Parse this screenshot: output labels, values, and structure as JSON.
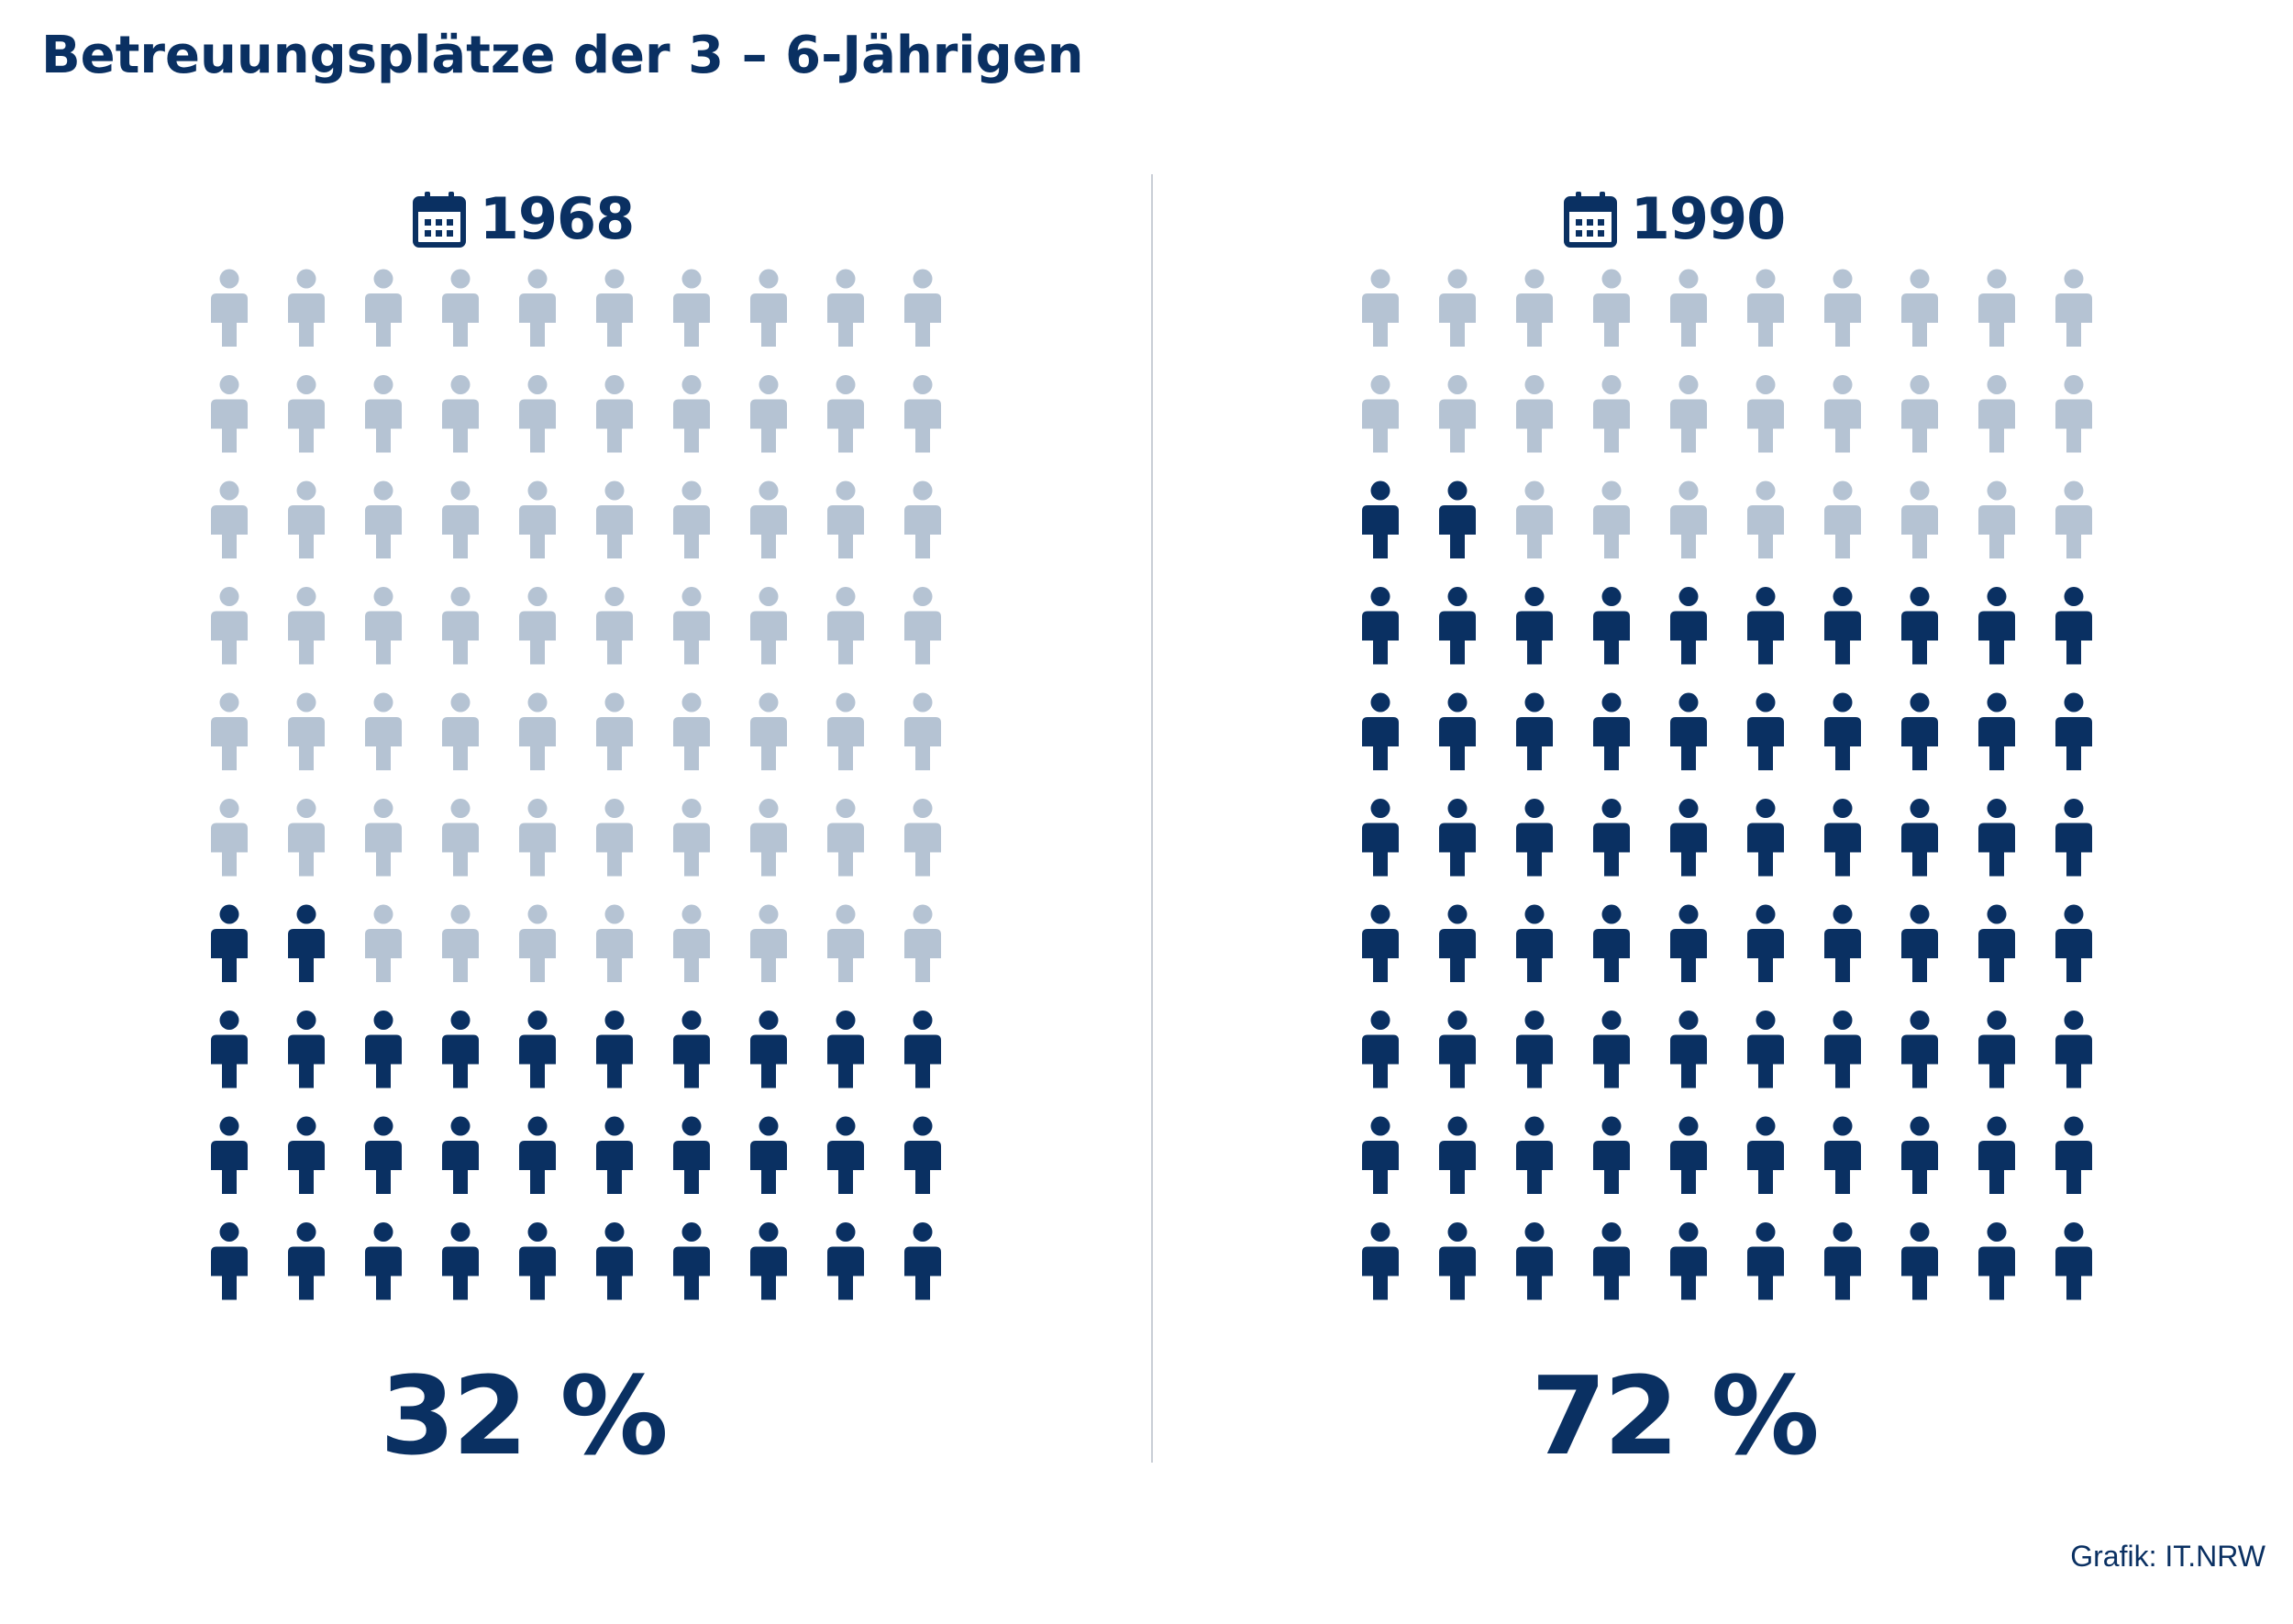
{
  "title": "Betreuungsplätze der 3 – 6-Jährigen",
  "credit": "Grafik: IT.NRW",
  "colors": {
    "filled": "#0a3062",
    "empty": "#b5c3d3",
    "divider": "#c9ced6"
  },
  "icons": {
    "year": "calendar-icon",
    "unit": "person-icon"
  },
  "chart_data": [
    {
      "type": "pictogram",
      "year": "1968",
      "percent_label": "32 %",
      "value": 32,
      "total": 100,
      "columns": 10,
      "rows": 10,
      "fill_order": "bottom-to-top, left-to-right"
    },
    {
      "type": "pictogram",
      "year": "1990",
      "percent_label": "72 %",
      "value": 72,
      "total": 100,
      "columns": 10,
      "rows": 10,
      "fill_order": "bottom-to-top, left-to-right"
    }
  ]
}
